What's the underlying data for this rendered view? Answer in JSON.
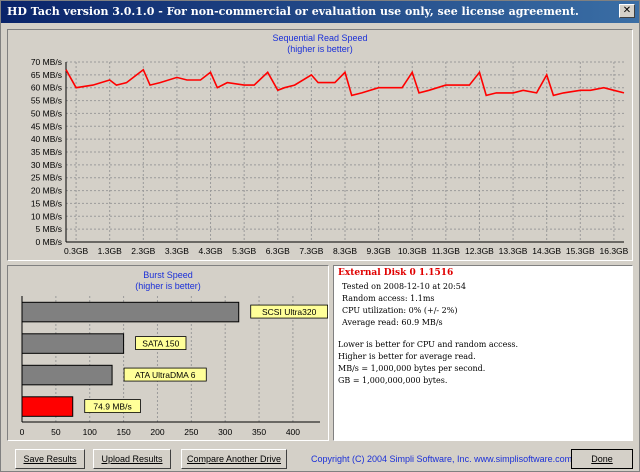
{
  "window": {
    "title": "HD Tach version 3.0.1.0  - For non-commercial or evaluation use only, see license agreement.",
    "close_glyph": "✕"
  },
  "read_chart": {
    "title": "Sequential Read Speed",
    "subtitle": "(higher is better)",
    "line_color": "#ff0000",
    "chart_data": {
      "type": "line",
      "title": "Sequential Read Speed",
      "subtitle": "(higher is better)",
      "y_unit": "MB/s",
      "yticks": [
        "0 MB/s",
        "5 MB/s",
        "10 MB/s",
        "15 MB/s",
        "20 MB/s",
        "25 MB/s",
        "30 MB/s",
        "35 MB/s",
        "40 MB/s",
        "45 MB/s",
        "50 MB/s",
        "55 MB/s",
        "60 MB/s",
        "65 MB/s",
        "70 MB/s"
      ],
      "ylim": [
        0,
        70
      ],
      "xticks": [
        "0.3GB",
        "1.3GB",
        "2.3GB",
        "3.3GB",
        "4.3GB",
        "5.3GB",
        "6.3GB",
        "7.3GB",
        "8.3GB",
        "9.3GB",
        "10.3GB",
        "11.3GB",
        "12.3GB",
        "13.3GB",
        "14.3GB",
        "15.3GB",
        "16.3GB"
      ],
      "xlim": [
        0,
        16.6
      ],
      "grid": true,
      "x": [
        0.0,
        0.3,
        0.8,
        1.3,
        1.5,
        1.8,
        2.3,
        2.5,
        2.8,
        3.3,
        3.6,
        4.0,
        4.3,
        4.5,
        4.8,
        5.3,
        5.6,
        6.0,
        6.3,
        6.5,
        6.8,
        7.3,
        7.5,
        7.8,
        8.0,
        8.3,
        8.5,
        8.8,
        9.3,
        9.6,
        10.0,
        10.3,
        10.5,
        10.8,
        11.3,
        11.6,
        12.0,
        12.3,
        12.5,
        12.8,
        13.3,
        13.6,
        14.0,
        14.3,
        14.5,
        14.8,
        15.3,
        15.6,
        16.0,
        16.3,
        16.6
      ],
      "y": [
        67,
        60,
        61,
        63,
        61,
        62,
        67,
        61,
        62,
        64,
        63,
        63,
        66,
        60,
        62,
        61,
        61,
        66,
        59,
        60,
        61,
        65,
        62,
        62,
        62,
        66,
        57,
        58,
        60,
        60,
        60,
        66,
        58,
        59,
        61,
        61,
        61,
        66,
        57,
        58,
        58,
        59,
        58,
        65,
        57,
        58,
        59,
        59,
        60,
        59,
        58
      ]
    }
  },
  "burst_chart": {
    "title": "Burst Speed",
    "subtitle": "(higher is better)",
    "chart_data": {
      "type": "bar",
      "orientation": "horizontal",
      "title": "Burst Speed",
      "subtitle": "(higher is better)",
      "categories": [
        "SCSI Ultra320",
        "SATA 150",
        "ATA UltraDMA 6",
        "74.9 MB/s"
      ],
      "values": [
        320,
        150,
        133,
        74.9
      ],
      "colors": [
        "#808080",
        "#808080",
        "#808080",
        "#ff0000"
      ],
      "xticks": [
        "0",
        "50",
        "100",
        "150",
        "200",
        "250",
        "300",
        "350",
        "400"
      ],
      "xlim": [
        0,
        440
      ],
      "grid": true
    }
  },
  "info": {
    "drive_name": "External Disk 0 1.1516",
    "tested_on": "Tested on 2008-12-10 at 20:54",
    "random_access": "Random access: 1.1ms",
    "cpu_utilization": "CPU utilization: 0% (+/- 2%)",
    "average_read": "Average read: 60.9 MB/s",
    "notes": [
      "Lower is better for CPU and random access.",
      "Higher is better for average read.",
      "MB/s = 1,000,000 bytes per second.",
      "GB = 1,000,000,000 bytes."
    ]
  },
  "buttons": {
    "save": "Save Results",
    "upload": "Upload Results",
    "compare": "Compare Another Drive",
    "done": "Done"
  },
  "footer": {
    "copyright": "Copyright (C) 2004 Simpli Software, Inc. www.simplisoftware.com"
  }
}
